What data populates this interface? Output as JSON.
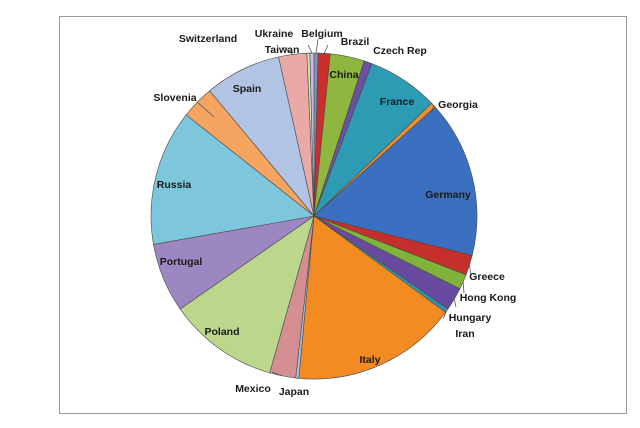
{
  "chart_data": {
    "type": "pie",
    "title": "",
    "labels": [
      "Belgium",
      "Brazil",
      "China",
      "Czech Rep",
      "France",
      "Georgia",
      "Germany",
      "Greece",
      "Hong Kong",
      "Hungary",
      "Iran",
      "Italy",
      "Japan",
      "Mexico",
      "Poland",
      "Portugal",
      "Russia",
      "Slovenia",
      "Spain",
      "Switzerland",
      "Taiwan",
      "Ukraine"
    ],
    "values": [
      0.4,
      1.2,
      3.4,
      0.8,
      7.1,
      0.5,
      15.6,
      2.0,
      1.5,
      2.3,
      0.4,
      16.5,
      0.3,
      2.6,
      11.0,
      6.9,
      13.5,
      3.3,
      7.6,
      2.8,
      0.3,
      0.4
    ],
    "colors": [
      "#7c96c8",
      "#c9302c",
      "#8fb73f",
      "#6b4fa0",
      "#2e9bb5",
      "#f18e2f",
      "#3b6fbf",
      "#c52f2c",
      "#7fb33a",
      "#6a4a9e",
      "#2a97b2",
      "#f28b22",
      "#a9c0e2",
      "#d58f92",
      "#bcd68c",
      "#9c87c2",
      "#7dc6dc",
      "#f6a561",
      "#b2c4e4",
      "#e9a9a7",
      "#d2e2b5",
      "#c7bbe0"
    ],
    "legend": "none"
  }
}
